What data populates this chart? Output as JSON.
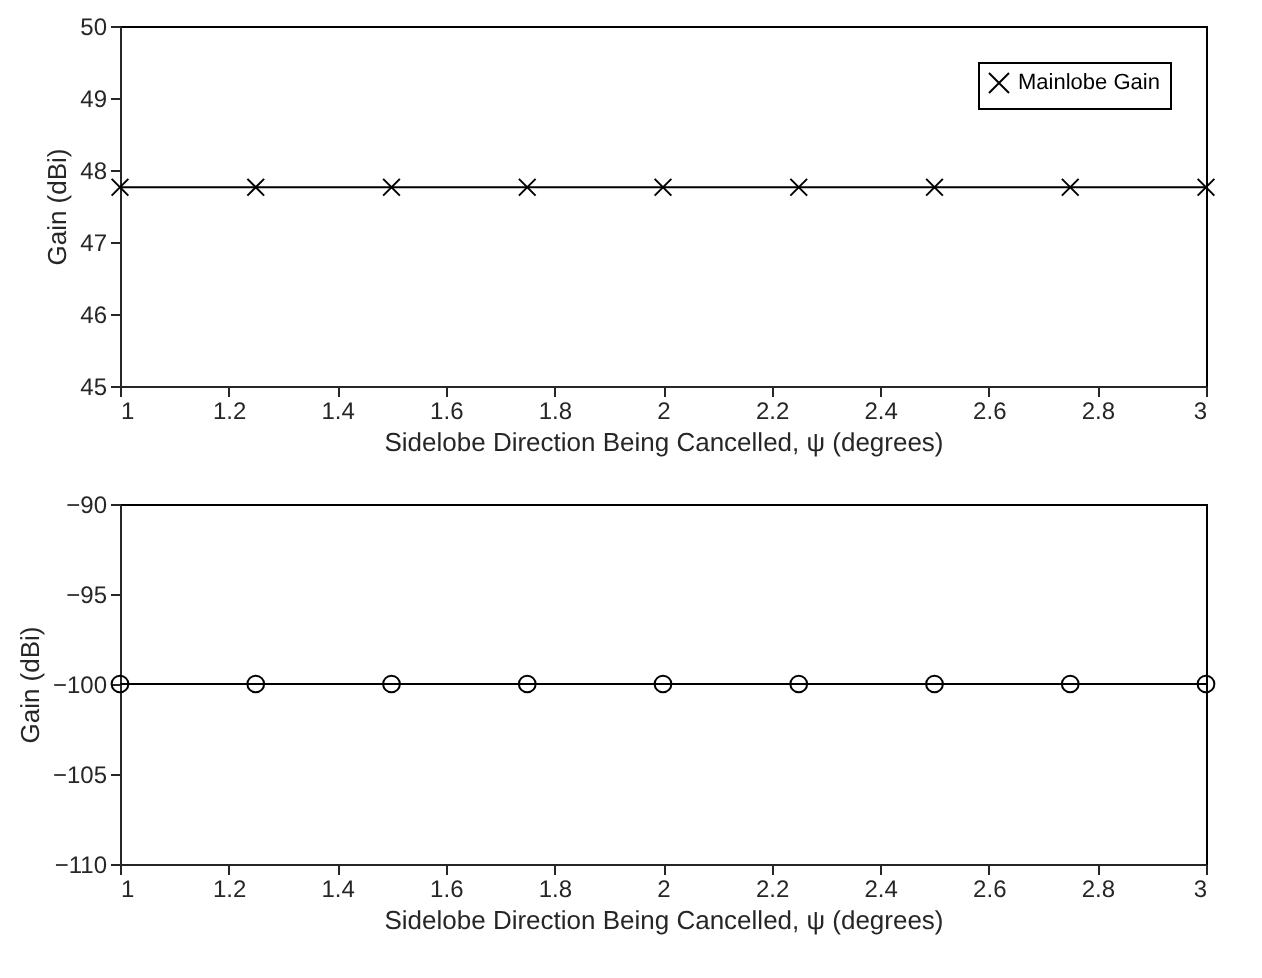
{
  "chart_data": [
    {
      "type": "line",
      "xlabel": "Sidelobe Direction Being Cancelled, ψ (degrees)",
      "ylabel": "Gain (dBi)",
      "x": [
        1,
        1.25,
        1.5,
        1.75,
        2,
        2.25,
        2.5,
        2.75,
        3
      ],
      "xlim": [
        1,
        3
      ],
      "xticks": [
        1,
        1.2,
        1.4,
        1.6,
        1.8,
        2,
        2.2,
        2.4,
        2.6,
        2.8,
        3
      ],
      "ylim": [
        45,
        50
      ],
      "yticks": [
        45,
        46,
        47,
        48,
        49,
        50
      ],
      "marker": "cross",
      "line_style": "solid",
      "legend": "top right",
      "series": [
        {
          "name": "Mainlobe Gain",
          "color": "#000000",
          "values": [
            47.76,
            47.76,
            47.76,
            47.76,
            47.76,
            47.76,
            47.76,
            47.76,
            47.76
          ]
        }
      ]
    },
    {
      "type": "line",
      "xlabel": "Sidelobe Direction Being Cancelled, ψ (degrees)",
      "ylabel": "Gain (dBi)",
      "x": [
        1,
        1.25,
        1.5,
        1.75,
        2,
        2.25,
        2.5,
        2.75,
        3
      ],
      "xlim": [
        1,
        3
      ],
      "xticks": [
        1,
        1.2,
        1.4,
        1.6,
        1.8,
        2,
        2.2,
        2.4,
        2.6,
        2.8,
        3
      ],
      "ylim": [
        -110,
        -90
      ],
      "yticks": [
        -110,
        -105,
        -100,
        -95,
        -90
      ],
      "marker": "circle",
      "line_style": "solid",
      "series": [
        {
          "color": "#000000",
          "values": [
            -100,
            -100,
            -100,
            -100,
            -100,
            -100,
            -100,
            -100,
            -100
          ]
        }
      ]
    }
  ]
}
